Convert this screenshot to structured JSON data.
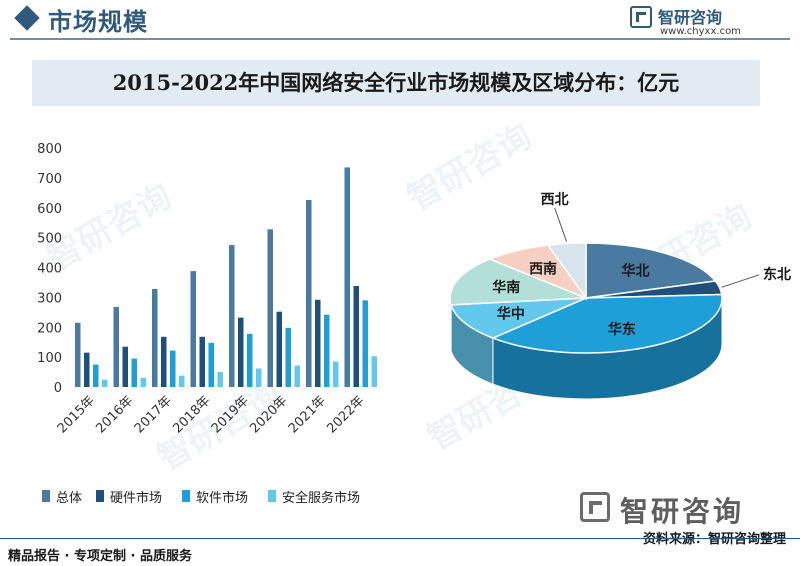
{
  "header": {
    "title": "市场规模",
    "logo_name": "智研咨询",
    "logo_url": "www.chyxx.com"
  },
  "banner": {
    "title": "2015-2022年中国网络安全行业市场规模及区域分布：亿元"
  },
  "watermark_text": "智研咨询",
  "colors": {
    "brand": "#2f5a7d",
    "series_total": "#4a7aa0",
    "series_hardware": "#1f4f7b",
    "series_software": "#1f9fd8",
    "series_service": "#62c8ee"
  },
  "chart_data": [
    {
      "type": "bar",
      "title": "",
      "categories": [
        "2015年",
        "2016年",
        "2017年",
        "2018年",
        "2019年",
        "2020年",
        "2021年",
        "2022年"
      ],
      "series": [
        {
          "name": "总体",
          "color": "#4a7aa0",
          "values": [
            215,
            268,
            328,
            388,
            475,
            528,
            626,
            735
          ]
        },
        {
          "name": "硬件市场",
          "color": "#1f4f7b",
          "values": [
            115,
            135,
            168,
            168,
            232,
            252,
            292,
            338
          ]
        },
        {
          "name": "软件市场",
          "color": "#1f9fd8",
          "values": [
            75,
            95,
            122,
            148,
            178,
            198,
            242,
            290
          ]
        },
        {
          "name": "安全服务市场",
          "color": "#62c8ee",
          "values": [
            25,
            30,
            38,
            50,
            62,
            72,
            85,
            103
          ]
        }
      ],
      "ylim": [
        0,
        800
      ],
      "yticks": [
        0,
        100,
        200,
        300,
        400,
        500,
        600,
        700,
        800
      ],
      "grid": false,
      "legend_position": "bottom"
    },
    {
      "type": "pie",
      "style": "3d",
      "slices": [
        {
          "label": "华北",
          "value": 20.0,
          "color": "#4a7aa0"
        },
        {
          "label": "东北",
          "value": 4.0,
          "color": "#1f4f7b"
        },
        {
          "label": "华东",
          "value": 38.0,
          "color": "#1f9fd8"
        },
        {
          "label": "华中",
          "value": 11.0,
          "color": "#62c8ee"
        },
        {
          "label": "华南",
          "value": 14.5,
          "color": "#b2e0d8"
        },
        {
          "label": "西南",
          "value": 8.0,
          "color": "#f6d0c2"
        },
        {
          "label": "西北",
          "value": 4.5,
          "color": "#d7e4ec"
        }
      ]
    }
  ],
  "bottom_logo": {
    "text": "智研咨询"
  },
  "source": "资料来源：智研咨询整理",
  "footer": {
    "text": "精品报告 · 专项定制 · 品质服务"
  }
}
